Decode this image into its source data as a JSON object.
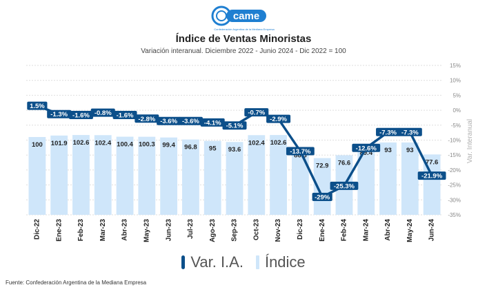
{
  "header": {
    "logo_text": "came",
    "logo_subtext": "Confederación Argentina de la Mediana Empresa",
    "title": "Índice de Ventas Minoristas",
    "subtitle": "Variación interanual. Diciembre 2022 - Junio 2024 - Dic 2022 = 100"
  },
  "legend": {
    "line_label": "Var. I.A.",
    "bar_label": "Índice"
  },
  "footer": {
    "source": "Fuente: Confederación Argentina de la Mediana Empresa"
  },
  "colors": {
    "bar": "#cfe6fa",
    "line": "#0c4f8a",
    "grid": "#d9d9d9",
    "logo": "#1f7fd1"
  },
  "chart_data": {
    "type": "bar",
    "categories": [
      "Dic-22",
      "Ene-23",
      "Feb-23",
      "Mar-23",
      "Abr-23",
      "May-23",
      "Jun-23",
      "Jul-23",
      "Ago-23",
      "Sep-23",
      "Oct-23",
      "Nov-23",
      "Dic-23",
      "Ene-24",
      "Feb-24",
      "Mar-24",
      "Abr-24",
      "May-24",
      "Jun-24"
    ],
    "series": [
      {
        "name": "Índice",
        "type": "bar",
        "axis": "left",
        "values": [
          100,
          101.9,
          102.6,
          102.4,
          100.4,
          100.3,
          99.4,
          96.8,
          95,
          93.6,
          102.4,
          102.6,
          86.3,
          72.9,
          76.6,
          89.4,
          93,
          93,
          77.6
        ],
        "labels": [
          "100",
          "101.9",
          "102.6",
          "102.4",
          "100.4",
          "100.3",
          "99.4",
          "96.8",
          "95",
          "93.6",
          "102.4",
          "102.6",
          "86.3",
          "72.9",
          "76.6",
          "89.4",
          "93",
          "93",
          "77.6"
        ]
      },
      {
        "name": "Var. I.A.",
        "type": "line",
        "axis": "right",
        "values": [
          1.5,
          -1.3,
          -1.6,
          -0.8,
          -1.6,
          -2.8,
          -3.6,
          -3.6,
          -4.1,
          -5.1,
          -0.7,
          -2.9,
          -13.7,
          -29,
          -25.3,
          -12.6,
          -7.3,
          -7.3,
          -21.9
        ],
        "labels": [
          "1.5%",
          "-1.3%",
          "-1.6%",
          "-0.8%",
          "-1.6%",
          "-2.8%",
          "-3.6%",
          "-3.6%",
          "-4.1%",
          "-5.1%",
          "-0.7%",
          "-2.9%",
          "-13.7%",
          "-29%",
          "-25.3%",
          "-12.6%",
          "-7.3%",
          "-7.3%",
          "-21.9%"
        ]
      }
    ],
    "y2label": "Var. Interanual",
    "y2lim": [
      -35,
      15
    ],
    "y2ticks": [
      "15%",
      "10%",
      "5%",
      "0%",
      "-5%",
      "-10%",
      "-15%",
      "-20%",
      "-25%",
      "-30%",
      "-35%"
    ],
    "grid": true,
    "legend_position": "bottom"
  }
}
